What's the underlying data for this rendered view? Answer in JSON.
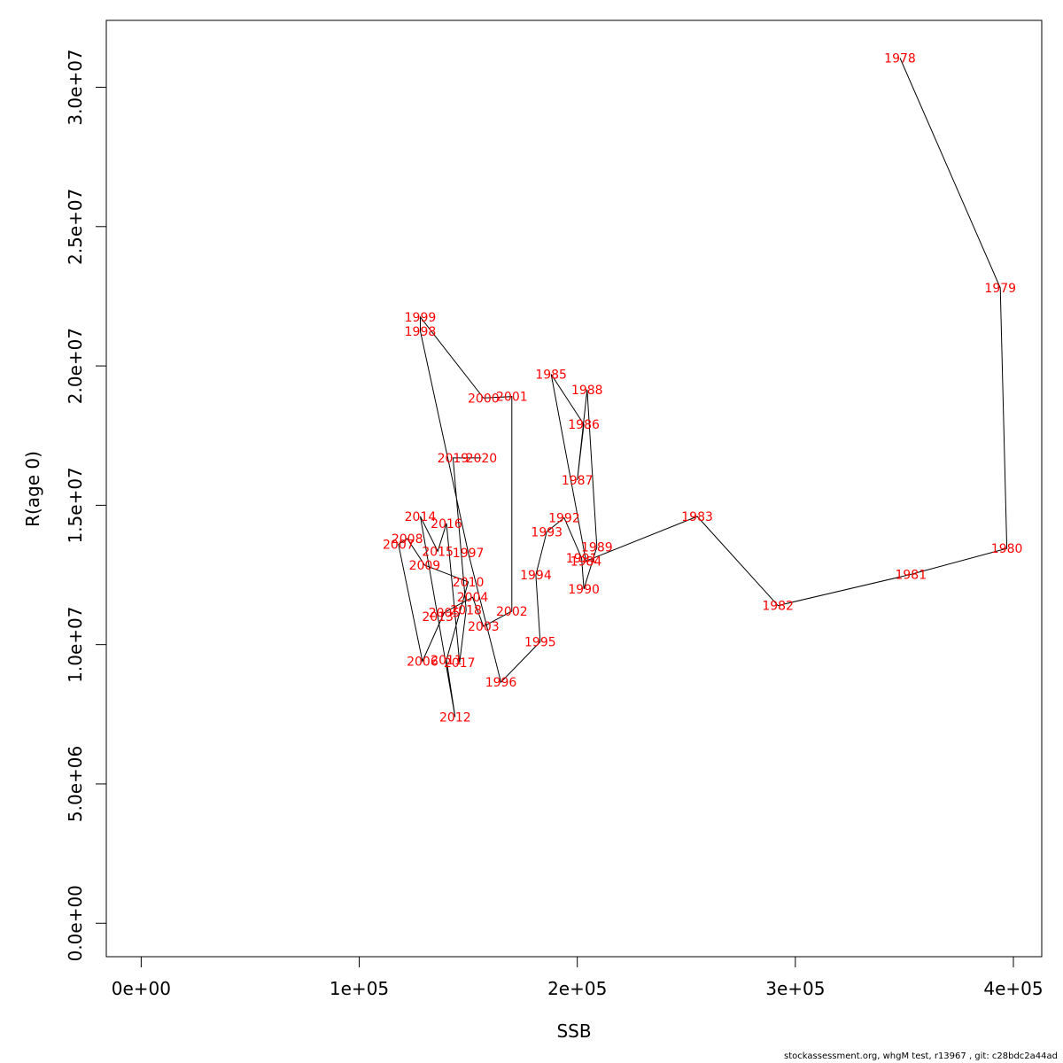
{
  "chart_data": {
    "type": "line",
    "title": "",
    "xlabel": "SSB",
    "ylabel": "R(age 0)",
    "xlim": [
      -16000,
      413000
    ],
    "ylim": [
      -1200000,
      32400000
    ],
    "x_ticks": [
      0,
      100000,
      200000,
      300000,
      400000
    ],
    "x_tick_labels": [
      "0e+00",
      "1e+05",
      "2e+05",
      "3e+05",
      "4e+05"
    ],
    "y_ticks": [
      0,
      5000000,
      10000000,
      15000000,
      20000000,
      25000000,
      30000000
    ],
    "y_tick_labels": [
      "0.0e+00",
      "5.0e+06",
      "1.0e+07",
      "1.5e+07",
      "2.0e+07",
      "2.5e+07",
      "3.0e+07"
    ],
    "grid": false,
    "label_color": "#ff0000",
    "line_color": "#000000",
    "points": [
      {
        "year": "1978",
        "x": 348000,
        "y": 31050000
      },
      {
        "year": "1979",
        "x": 394000,
        "y": 22800000
      },
      {
        "year": "1980",
        "x": 397000,
        "y": 13450000
      },
      {
        "year": "1981",
        "x": 353000,
        "y": 12520000
      },
      {
        "year": "1982",
        "x": 292000,
        "y": 11400000
      },
      {
        "year": "1983",
        "x": 255000,
        "y": 14600000
      },
      {
        "year": "1984",
        "x": 204000,
        "y": 13000000
      },
      {
        "year": "1985",
        "x": 188000,
        "y": 19700000
      },
      {
        "year": "1986",
        "x": 203000,
        "y": 17900000
      },
      {
        "year": "1987",
        "x": 200000,
        "y": 15900000
      },
      {
        "year": "1988",
        "x": 204500,
        "y": 19150000
      },
      {
        "year": "1989",
        "x": 209000,
        "y": 13500000
      },
      {
        "year": "1990",
        "x": 203000,
        "y": 12000000
      },
      {
        "year": "1991",
        "x": 202000,
        "y": 13100000
      },
      {
        "year": "1992",
        "x": 194000,
        "y": 14550000
      },
      {
        "year": "1993",
        "x": 186000,
        "y": 14050000
      },
      {
        "year": "1994",
        "x": 181000,
        "y": 12500000
      },
      {
        "year": "1995",
        "x": 183000,
        "y": 10100000
      },
      {
        "year": "1996",
        "x": 165000,
        "y": 8650000
      },
      {
        "year": "1997",
        "x": 150000,
        "y": 13300000
      },
      {
        "year": "1998",
        "x": 128000,
        "y": 21250000
      },
      {
        "year": "1999",
        "x": 128000,
        "y": 21750000
      },
      {
        "year": "2000",
        "x": 157000,
        "y": 18850000
      },
      {
        "year": "2001",
        "x": 170000,
        "y": 18900000
      },
      {
        "year": "2002",
        "x": 170000,
        "y": 11200000
      },
      {
        "year": "2003",
        "x": 157000,
        "y": 10650000
      },
      {
        "year": "2004",
        "x": 152000,
        "y": 11700000
      },
      {
        "year": "2005",
        "x": 139000,
        "y": 11150000
      },
      {
        "year": "2006",
        "x": 129000,
        "y": 9400000
      },
      {
        "year": "2007",
        "x": 118000,
        "y": 13600000
      },
      {
        "year": "2008",
        "x": 122000,
        "y": 13800000
      },
      {
        "year": "2009",
        "x": 130000,
        "y": 12850000
      },
      {
        "year": "2010",
        "x": 150000,
        "y": 12250000
      },
      {
        "year": "2011",
        "x": 140000,
        "y": 9450000
      },
      {
        "year": "2012",
        "x": 144000,
        "y": 7400000
      },
      {
        "year": "2013",
        "x": 136000,
        "y": 11000000
      },
      {
        "year": "2014",
        "x": 128000,
        "y": 14600000
      },
      {
        "year": "2015",
        "x": 136000,
        "y": 13350000
      },
      {
        "year": "2016",
        "x": 140000,
        "y": 14350000
      },
      {
        "year": "2017",
        "x": 146000,
        "y": 9350000
      },
      {
        "year": "2018",
        "x": 149000,
        "y": 11250000
      },
      {
        "year": "2019",
        "x": 143000,
        "y": 16700000
      },
      {
        "year": "2020",
        "x": 156000,
        "y": 16700000
      }
    ]
  },
  "footer": "stockassessment.org, whgM  test, r13967 , git: c28bdc2a44ad"
}
